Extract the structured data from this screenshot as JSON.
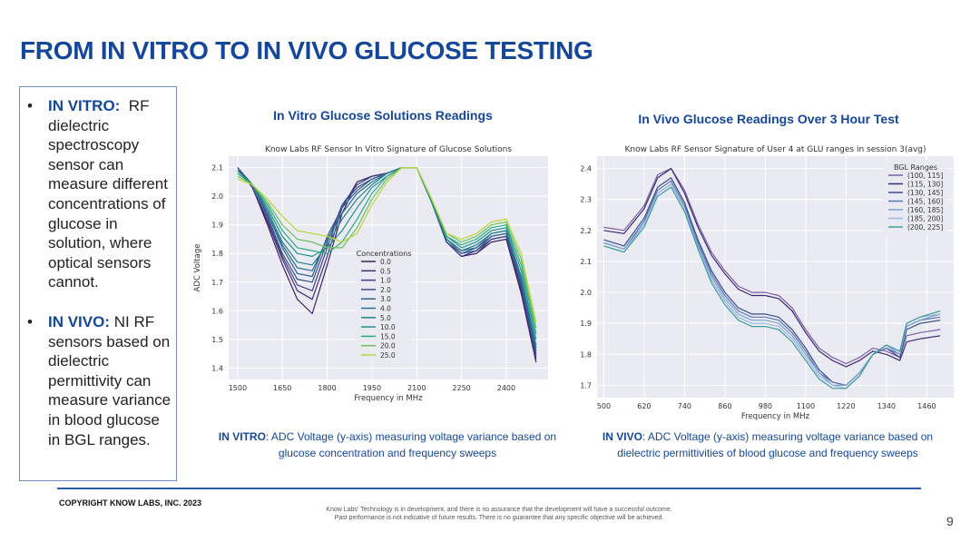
{
  "slide": {
    "title": "FROM IN VITRO TO IN VIVO GLUCOSE TESTING",
    "page_number": "9",
    "copyright": "COPYRIGHT KNOW LABS, INC. 2023",
    "disclaimer_1": "Know Labs' Technology is in development, and there is no assurance that the development will have a successful outcome.",
    "disclaimer_2": "Past performance is not indicative of future results. There is no guarantee that any specific objective will be achieved."
  },
  "bullets": [
    {
      "lead": "IN VITRO:",
      "text": "RF dielectric spectroscopy sensor can measure different concentrations of glucose in solution, where optical sensors cannot."
    },
    {
      "lead": "IN VIVO:",
      "text": "NI RF sensors based on dielectric permittivity can measure variance in blood glucose in BGL ranges."
    }
  ],
  "panels": {
    "vitro": {
      "heading": "In Vitro Glucose Solutions Readings",
      "caption_lead": "IN VITRO",
      "caption_rest": ": ADC Voltage (y-axis) measuring voltage variance  based on",
      "caption_line2": "glucose concentration and frequency sweeps"
    },
    "vivo": {
      "heading": "In Vivo Glucose Readings Over 3 Hour Test",
      "caption_lead": "IN VIVO",
      "caption_rest": ": ADC Voltage (y-axis) measuring voltage variance based on",
      "caption_line2": "dielectric permittivities of blood glucose and frequency sweeps"
    }
  },
  "chart_data": [
    {
      "type": "line",
      "title": "Know Labs RF Sensor In Vitro Signature of Glucose Solutions",
      "xlabel": "Frequency in MHz",
      "ylabel": "ADC Voltage",
      "xlim": [
        1470,
        2540
      ],
      "ylim": [
        1.36,
        2.14
      ],
      "xticks": [
        1500,
        1650,
        1800,
        1950,
        2100,
        2250,
        2400
      ],
      "yticks": [
        1.4,
        1.5,
        1.6,
        1.7,
        1.8,
        1.9,
        2.0,
        2.1
      ],
      "legend_title": "Concentrations",
      "x": [
        1500,
        1550,
        1600,
        1650,
        1700,
        1750,
        1800,
        1850,
        1900,
        1950,
        2000,
        2050,
        2100,
        2150,
        2200,
        2250,
        2300,
        2350,
        2400,
        2450,
        2500
      ],
      "series": [
        {
          "name": "0.0",
          "color": "#3d2161",
          "values": [
            2.1,
            2.03,
            1.9,
            1.76,
            1.64,
            1.59,
            1.76,
            1.94,
            2.05,
            2.07,
            2.08,
            2.1,
            2.1,
            1.98,
            1.84,
            1.79,
            1.8,
            1.84,
            1.85,
            1.66,
            1.42
          ]
        },
        {
          "name": "0.5",
          "color": "#452f75",
          "values": [
            2.1,
            2.03,
            1.91,
            1.78,
            1.67,
            1.64,
            1.79,
            1.96,
            2.05,
            2.07,
            2.08,
            2.1,
            2.1,
            1.98,
            1.84,
            1.79,
            1.8,
            1.85,
            1.86,
            1.67,
            1.43
          ]
        },
        {
          "name": "1.0",
          "color": "#3e3f86",
          "values": [
            2.1,
            2.03,
            1.92,
            1.79,
            1.69,
            1.67,
            1.82,
            1.97,
            2.04,
            2.07,
            2.08,
            2.1,
            2.1,
            1.98,
            1.84,
            1.79,
            1.81,
            1.85,
            1.86,
            1.68,
            1.44
          ]
        },
        {
          "name": "2.0",
          "color": "#36508d",
          "values": [
            2.1,
            2.04,
            1.93,
            1.8,
            1.71,
            1.7,
            1.84,
            1.97,
            2.03,
            2.06,
            2.08,
            2.1,
            2.1,
            1.98,
            1.84,
            1.8,
            1.81,
            1.86,
            1.87,
            1.69,
            1.45
          ]
        },
        {
          "name": "3.0",
          "color": "#30608e",
          "values": [
            2.09,
            2.04,
            1.94,
            1.82,
            1.73,
            1.72,
            1.86,
            1.96,
            2.02,
            2.06,
            2.08,
            2.1,
            2.1,
            1.98,
            1.85,
            1.8,
            1.82,
            1.86,
            1.87,
            1.7,
            1.46
          ]
        },
        {
          "name": "4.0",
          "color": "#2a6f8e",
          "values": [
            2.09,
            2.04,
            1.94,
            1.83,
            1.75,
            1.74,
            1.85,
            1.94,
            2.01,
            2.05,
            2.08,
            2.1,
            2.1,
            1.98,
            1.85,
            1.81,
            1.82,
            1.87,
            1.88,
            1.71,
            1.47
          ]
        },
        {
          "name": "5.0",
          "color": "#257e8d",
          "values": [
            2.09,
            2.04,
            1.95,
            1.84,
            1.77,
            1.76,
            1.83,
            1.92,
            1.99,
            2.04,
            2.08,
            2.1,
            2.1,
            1.98,
            1.85,
            1.81,
            1.83,
            1.87,
            1.88,
            1.72,
            1.48
          ]
        },
        {
          "name": "10.0",
          "color": "#23918a",
          "values": [
            2.08,
            2.04,
            1.96,
            1.86,
            1.8,
            1.79,
            1.82,
            1.88,
            1.96,
            2.03,
            2.07,
            2.1,
            2.1,
            1.98,
            1.86,
            1.82,
            1.84,
            1.88,
            1.89,
            1.74,
            1.5
          ]
        },
        {
          "name": "15.0",
          "color": "#2ea97d",
          "values": [
            2.08,
            2.04,
            1.97,
            1.88,
            1.82,
            1.81,
            1.8,
            1.84,
            1.92,
            2.01,
            2.07,
            2.1,
            2.1,
            1.99,
            1.86,
            1.83,
            1.85,
            1.89,
            1.9,
            1.76,
            1.52
          ]
        },
        {
          "name": "20.0",
          "color": "#6ac05f",
          "values": [
            2.07,
            2.04,
            1.98,
            1.9,
            1.85,
            1.84,
            1.82,
            1.82,
            1.89,
            1.99,
            2.06,
            2.1,
            2.1,
            1.99,
            1.87,
            1.84,
            1.86,
            1.9,
            1.91,
            1.78,
            1.54
          ]
        },
        {
          "name": "25.0",
          "color": "#bcd634",
          "values": [
            2.06,
            2.04,
            1.99,
            1.93,
            1.88,
            1.87,
            1.86,
            1.84,
            1.87,
            1.97,
            2.05,
            2.1,
            2.1,
            1.99,
            1.87,
            1.85,
            1.87,
            1.91,
            1.92,
            1.8,
            1.56
          ]
        }
      ]
    },
    {
      "type": "line",
      "title": "Know Labs RF Sensor Signature of User 4 at GLU ranges in session 3(avg)",
      "xlabel": "Frequency in MHz",
      "ylabel": "ADC Voltage",
      "xlim": [
        480,
        1540
      ],
      "ylim": [
        1.66,
        2.44
      ],
      "xticks": [
        500,
        620,
        740,
        860,
        980,
        1100,
        1220,
        1340,
        1460
      ],
      "xtick_labels": [
        "500",
        "620",
        "740",
        "860",
        "980",
        "1100",
        "1220",
        "1340",
        "1460"
      ],
      "yticks": [
        1.7,
        1.8,
        1.9,
        2.0,
        2.1,
        2.2,
        2.3,
        2.4
      ],
      "legend_title": "BGL Ranges",
      "x": [
        500,
        560,
        620,
        660,
        700,
        740,
        780,
        820,
        860,
        900,
        940,
        980,
        1020,
        1060,
        1100,
        1140,
        1180,
        1220,
        1260,
        1300,
        1340,
        1380,
        1400,
        1440,
        1500
      ],
      "series": [
        {
          "name": "(100, 115]",
          "color": "#7b5ea7",
          "values": [
            2.21,
            2.2,
            2.28,
            2.38,
            2.4,
            2.33,
            2.22,
            2.13,
            2.07,
            2.02,
            2.0,
            2.0,
            1.99,
            1.95,
            1.88,
            1.82,
            1.79,
            1.77,
            1.79,
            1.82,
            1.81,
            1.79,
            1.86,
            1.87,
            1.88
          ]
        },
        {
          "name": "(115, 130]",
          "color": "#3d2a72",
          "values": [
            2.2,
            2.19,
            2.27,
            2.37,
            2.4,
            2.32,
            2.21,
            2.12,
            2.06,
            2.01,
            1.99,
            1.99,
            1.98,
            1.94,
            1.87,
            1.81,
            1.78,
            1.76,
            1.78,
            1.81,
            1.8,
            1.78,
            1.84,
            1.85,
            1.86
          ]
        },
        {
          "name": "(130, 145]",
          "color": "#3a4b8c",
          "values": [
            2.17,
            2.15,
            2.24,
            2.34,
            2.37,
            2.29,
            2.17,
            2.07,
            2.0,
            1.95,
            1.93,
            1.93,
            1.92,
            1.88,
            1.82,
            1.75,
            1.71,
            1.7,
            1.74,
            1.8,
            1.82,
            1.79,
            1.88,
            1.9,
            1.91
          ]
        },
        {
          "name": "(145, 160]",
          "color": "#5d75b4",
          "values": [
            2.16,
            2.14,
            2.23,
            2.33,
            2.36,
            2.28,
            2.16,
            2.06,
            1.99,
            1.94,
            1.92,
            1.92,
            1.91,
            1.87,
            1.81,
            1.74,
            1.71,
            1.7,
            1.74,
            1.8,
            1.82,
            1.8,
            1.89,
            1.91,
            1.92
          ]
        },
        {
          "name": "(160, 185]",
          "color": "#7d9fd0",
          "values": [
            2.16,
            2.14,
            2.22,
            2.32,
            2.35,
            2.27,
            2.15,
            2.05,
            1.98,
            1.93,
            1.91,
            1.91,
            1.9,
            1.86,
            1.8,
            1.74,
            1.7,
            1.7,
            1.74,
            1.8,
            1.83,
            1.8,
            1.89,
            1.91,
            1.93
          ]
        },
        {
          "name": "(185, 200]",
          "color": "#9ab6dc",
          "values": [
            2.15,
            2.13,
            2.22,
            2.32,
            2.35,
            2.27,
            2.14,
            2.04,
            1.97,
            1.92,
            1.9,
            1.9,
            1.89,
            1.85,
            1.79,
            1.73,
            1.7,
            1.69,
            1.73,
            1.8,
            1.83,
            1.81,
            1.9,
            1.92,
            1.93
          ]
        },
        {
          "name": "(200, 225]",
          "color": "#3c9f9a",
          "values": [
            2.15,
            2.13,
            2.21,
            2.31,
            2.34,
            2.26,
            2.14,
            2.03,
            1.96,
            1.91,
            1.89,
            1.89,
            1.88,
            1.84,
            1.78,
            1.72,
            1.69,
            1.69,
            1.73,
            1.8,
            1.83,
            1.81,
            1.9,
            1.92,
            1.94
          ]
        }
      ]
    }
  ]
}
